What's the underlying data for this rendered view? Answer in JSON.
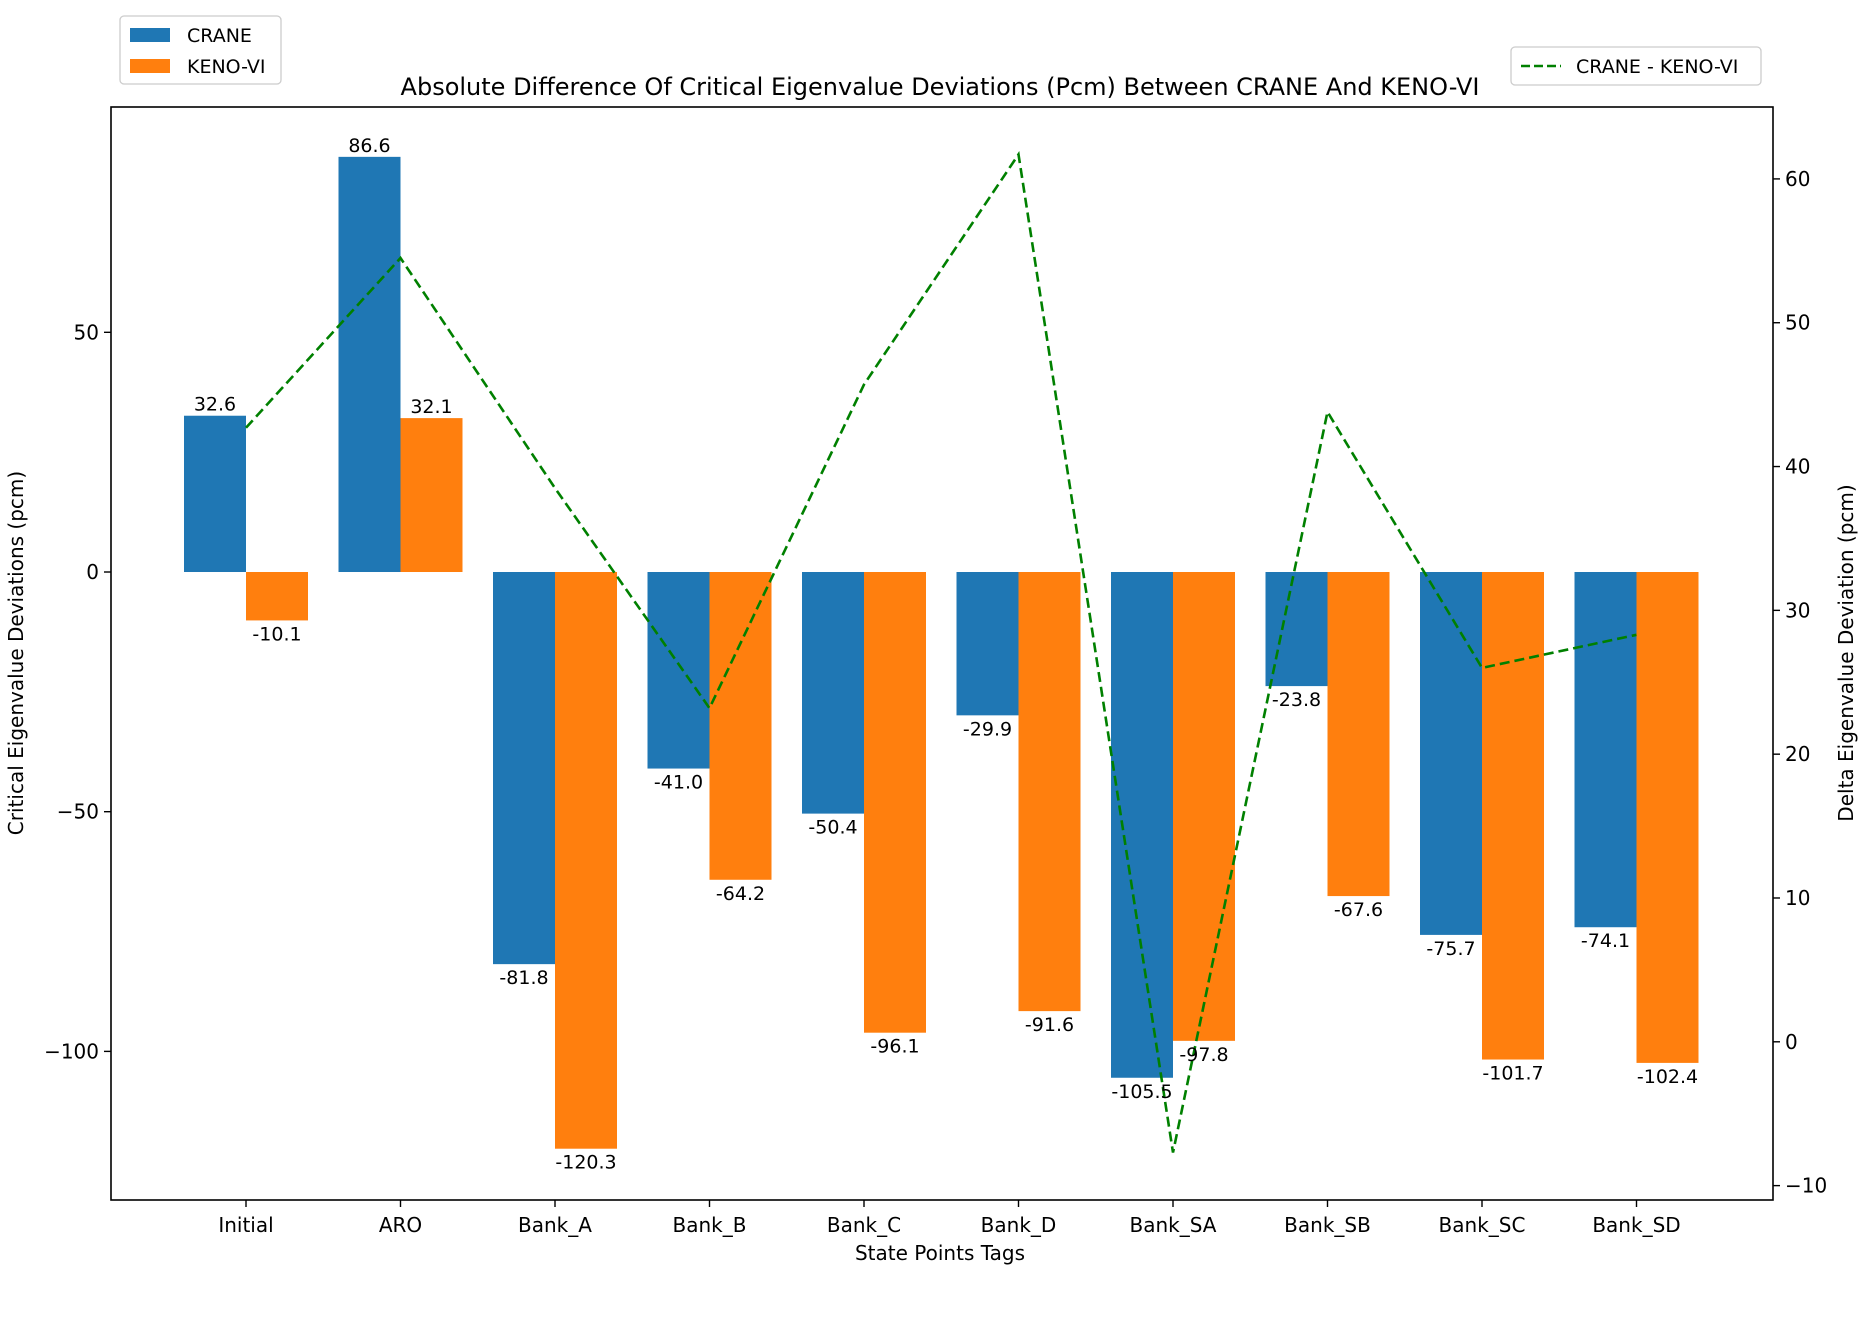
{
  "chart_data": {
    "type": "bar",
    "title": "Absolute Difference Of Critical Eigenvalue Deviations (Pcm) Between CRANE And KENO-VI",
    "xlabel": "State Points Tags",
    "ylabel": "Critical Eigenvalue Deviations (pcm)",
    "ylabel_right": "Delta Eigenvalue Deviation (pcm)",
    "categories": [
      "Initial",
      "ARO",
      "Bank_A",
      "Bank_B",
      "Bank_C",
      "Bank_D",
      "Bank_SA",
      "Bank_SB",
      "Bank_SC",
      "Bank_SD"
    ],
    "series": [
      {
        "name": "CRANE",
        "kind": "bar",
        "axis": "left",
        "color": "#1f77b4",
        "values": [
          32.6,
          86.6,
          -81.8,
          -41.0,
          -50.4,
          -29.9,
          -105.5,
          -23.8,
          -75.7,
          -74.1
        ],
        "labels": [
          "32.6",
          "86.6",
          "-81.8",
          "-41.0",
          "-50.4",
          "-29.9",
          "-105.5",
          "-23.8",
          "-75.7",
          "-74.1"
        ]
      },
      {
        "name": "KENO-VI",
        "kind": "bar",
        "axis": "left",
        "color": "#ff7f0e",
        "values": [
          -10.1,
          32.1,
          -120.3,
          -64.2,
          -96.1,
          -91.6,
          -97.8,
          -67.6,
          -101.7,
          -102.4
        ],
        "labels": [
          "-10.1",
          "32.1",
          "-120.3",
          "-64.2",
          "-96.1",
          "-91.6",
          "-97.8",
          "-67.6",
          "-101.7",
          "-102.4"
        ]
      },
      {
        "name": "CRANE - KENO-VI",
        "kind": "line",
        "axis": "right",
        "color": "#008000",
        "dash": "dashed",
        "values": [
          42.7,
          54.5,
          38.5,
          23.2,
          45.7,
          61.7,
          -7.7,
          43.8,
          26.0,
          28.3
        ]
      }
    ],
    "ylim": [
      -131,
      97
    ],
    "yticks": [
      -100,
      -50,
      0,
      50
    ],
    "ylim_right": [
      -11,
      65
    ],
    "yticks_right": [
      -10,
      0,
      10,
      20,
      30,
      40,
      50,
      60
    ],
    "grid": false,
    "legend_left_placement": "top-left, above axes",
    "legend_right_placement": "top-right, above axes"
  }
}
